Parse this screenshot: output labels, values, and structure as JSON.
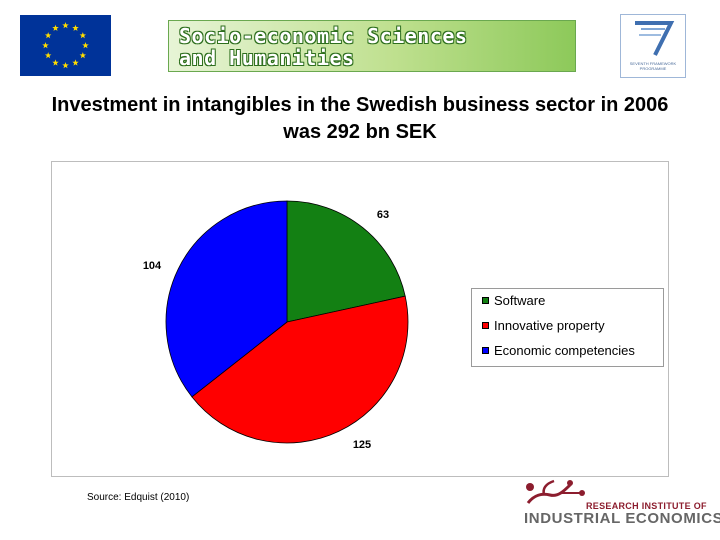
{
  "header": {
    "eu_flag": {
      "background": "#003399",
      "stars": "#ffdd00"
    },
    "banner": {
      "line1": "Socio-economic Sciences",
      "line2": "and Humanities"
    },
    "fp7_logo": {
      "icon": "fp7-logo-icon",
      "caption_line1": "SEVENTH FRAMEWORK",
      "caption_line2": "PROGRAMME"
    }
  },
  "slide": {
    "title": "Investment in intangibles in the Swedish business sector in 2006 was 292 bn SEK",
    "source": "Source: Edquist (2010)"
  },
  "chart_data": {
    "type": "pie",
    "title": "",
    "categories": [
      "Software",
      "Innovative property",
      "Economic competencies"
    ],
    "values": [
      63,
      125,
      104
    ],
    "colors": [
      "#138013",
      "#ff0000",
      "#0000ff"
    ],
    "data_labels": [
      "63",
      "125",
      "104"
    ],
    "start_angle_deg": 0,
    "direction": "clockwise",
    "legend": {
      "position": "right",
      "entries": [
        "Software",
        "Innovative property",
        "Economic competencies"
      ]
    }
  },
  "footer_logo": {
    "line1": "RESEARCH INSTITUTE OF",
    "line2": "INDUSTRIAL ECONOMICS",
    "accent": "#8c1d2e"
  }
}
